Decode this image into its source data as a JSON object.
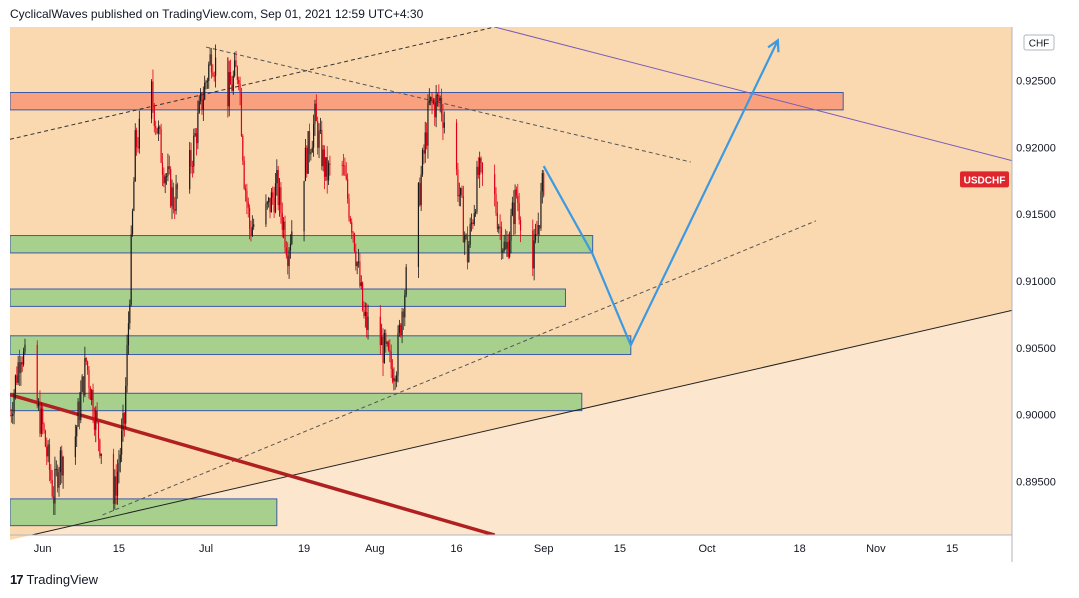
{
  "header": {
    "text": "CyclicalWaves published on TradingView.com, Sep 01, 2021 12:59 UTC+4:30"
  },
  "footer": {
    "brand": "TradingView",
    "logo_glyph": "17"
  },
  "colors": {
    "background_fill": "#fbd9b0",
    "background_lower": "#fde6ce",
    "candle_up": "#1a1a1a",
    "candle_down": "#e0001a",
    "resistance_zone": "#f9a07f",
    "support_zone": "#a8d08d",
    "projection": "#3d9ae0",
    "symbol_badge": "#e0262d"
  },
  "chart_data": {
    "type": "candlestick",
    "symbol": "USDCHF",
    "currency": "CHF",
    "y_axis": {
      "ticks": [
        0.925,
        0.92,
        0.915,
        0.91,
        0.905,
        0.9,
        0.895
      ],
      "tick_labels": [
        "0.92500",
        "0.92000",
        "0.91500",
        "0.91000",
        "0.90500",
        "0.90000",
        "0.89500"
      ],
      "range": [
        0.891,
        0.929
      ]
    },
    "x_axis": {
      "tick_labels": [
        "Jun",
        "15",
        "Jul",
        "19",
        "Aug",
        "16",
        "Sep",
        "15",
        "Oct",
        "18",
        "Nov",
        "15"
      ],
      "range": [
        "2021-05-26",
        "2021-11-26"
      ]
    },
    "last_price": 0.9176,
    "price_path": [
      [
        "2021-05-26",
        0.9
      ],
      [
        "2021-05-28",
        0.905
      ],
      [
        "2021-06-01",
        0.899
      ],
      [
        "2021-06-03",
        0.894
      ],
      [
        "2021-06-04",
        0.8965
      ],
      [
        "2021-06-07",
        0.8985
      ],
      [
        "2021-06-09",
        0.904
      ],
      [
        "2021-06-11",
        0.899
      ],
      [
        "2021-06-14",
        0.8935
      ],
      [
        "2021-06-16",
        0.8995
      ],
      [
        "2021-06-17",
        0.9095
      ],
      [
        "2021-06-18",
        0.92
      ],
      [
        "2021-06-21",
        0.924
      ],
      [
        "2021-06-23",
        0.919
      ],
      [
        "2021-06-25",
        0.916
      ],
      [
        "2021-06-28",
        0.9185
      ],
      [
        "2021-06-30",
        0.923
      ],
      [
        "2021-07-02",
        0.927
      ],
      [
        "2021-07-05",
        0.924
      ],
      [
        "2021-07-07",
        0.926
      ],
      [
        "2021-07-08",
        0.918
      ],
      [
        "2021-07-09",
        0.914
      ],
      [
        "2021-07-12",
        0.915
      ],
      [
        "2021-07-14",
        0.917
      ],
      [
        "2021-07-16",
        0.9125
      ],
      [
        "2021-07-19",
        0.9185
      ],
      [
        "2021-07-21",
        0.922
      ],
      [
        "2021-07-23",
        0.918
      ],
      [
        "2021-07-26",
        0.9185
      ],
      [
        "2021-07-28",
        0.914
      ],
      [
        "2021-07-30",
        0.907
      ],
      [
        "2021-08-02",
        0.9055
      ],
      [
        "2021-08-04",
        0.9035
      ],
      [
        "2021-08-05",
        0.904
      ],
      [
        "2021-08-06",
        0.908
      ],
      [
        "2021-08-09",
        0.916
      ],
      [
        "2021-08-11",
        0.923
      ],
      [
        "2021-08-13",
        0.9235
      ],
      [
        "2021-08-16",
        0.918
      ],
      [
        "2021-08-18",
        0.912
      ],
      [
        "2021-08-20",
        0.918
      ],
      [
        "2021-08-23",
        0.916
      ],
      [
        "2021-08-25",
        0.912
      ],
      [
        "2021-08-27",
        0.9165
      ],
      [
        "2021-08-30",
        0.911
      ],
      [
        "2021-09-01",
        0.9176
      ]
    ],
    "zones": [
      {
        "kind": "resistance",
        "from": "2021-05-26",
        "to": "2021-10-26",
        "low": 0.9228,
        "high": 0.9241
      },
      {
        "kind": "support",
        "from": "2021-05-26",
        "to": "2021-09-10",
        "low": 0.9121,
        "high": 0.9134
      },
      {
        "kind": "support",
        "from": "2021-05-26",
        "to": "2021-09-05",
        "low": 0.9081,
        "high": 0.9094
      },
      {
        "kind": "support",
        "from": "2021-05-26",
        "to": "2021-09-17",
        "low": 0.9045,
        "high": 0.9059
      },
      {
        "kind": "support",
        "from": "2021-05-26",
        "to": "2021-09-08",
        "low": 0.9003,
        "high": 0.9016
      },
      {
        "kind": "support",
        "from": "2021-05-26",
        "to": "2021-07-14",
        "low": 0.8917,
        "high": 0.8937
      }
    ],
    "trendlines": [
      {
        "style": "dashed",
        "color": "#333333",
        "from": [
          "2021-05-26",
          0.9206
        ],
        "to": [
          "2021-08-23",
          0.929
        ]
      },
      {
        "style": "dashed",
        "color": "#555555",
        "from": [
          "2021-07-01",
          0.9275
        ],
        "to": [
          "2021-09-28",
          0.9189
        ]
      },
      {
        "style": "dashed",
        "color": "#555555",
        "from": [
          "2021-06-12",
          0.8925
        ],
        "to": [
          "2021-10-21",
          0.9145
        ]
      },
      {
        "style": "solid",
        "color": "#222222",
        "from": [
          "2021-05-30",
          0.891
        ],
        "to": [
          "2021-11-26",
          0.9078
        ]
      },
      {
        "style": "solid",
        "color": "#7b5cb8",
        "from": [
          "2021-08-23",
          0.929
        ],
        "to": [
          "2021-11-26",
          0.919
        ]
      },
      {
        "style": "thick",
        "color": "#b02020",
        "from": [
          "2021-05-26",
          0.9015
        ],
        "to": [
          "2021-08-23",
          0.891
        ]
      }
    ],
    "projection": [
      [
        "2021-09-01",
        0.9186
      ],
      [
        "2021-09-10",
        0.912
      ],
      [
        "2021-09-17",
        0.9052
      ],
      [
        "2021-10-14",
        0.928
      ]
    ]
  }
}
